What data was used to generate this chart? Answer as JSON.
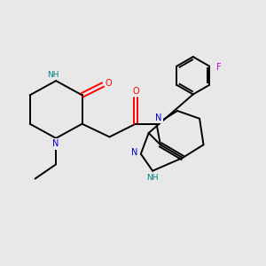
{
  "background_color": "#e8e8e8",
  "bond_color": "#000000",
  "N_color": "#0000cc",
  "O_color": "#ff0000",
  "F_color": "#cc00cc",
  "NH_color": "#008080",
  "lw": 1.4,
  "figsize": [
    3.0,
    3.0
  ],
  "dpi": 100,
  "xlim": [
    0,
    10
  ],
  "ylim": [
    0,
    10
  ],
  "fontsize": 7.0
}
